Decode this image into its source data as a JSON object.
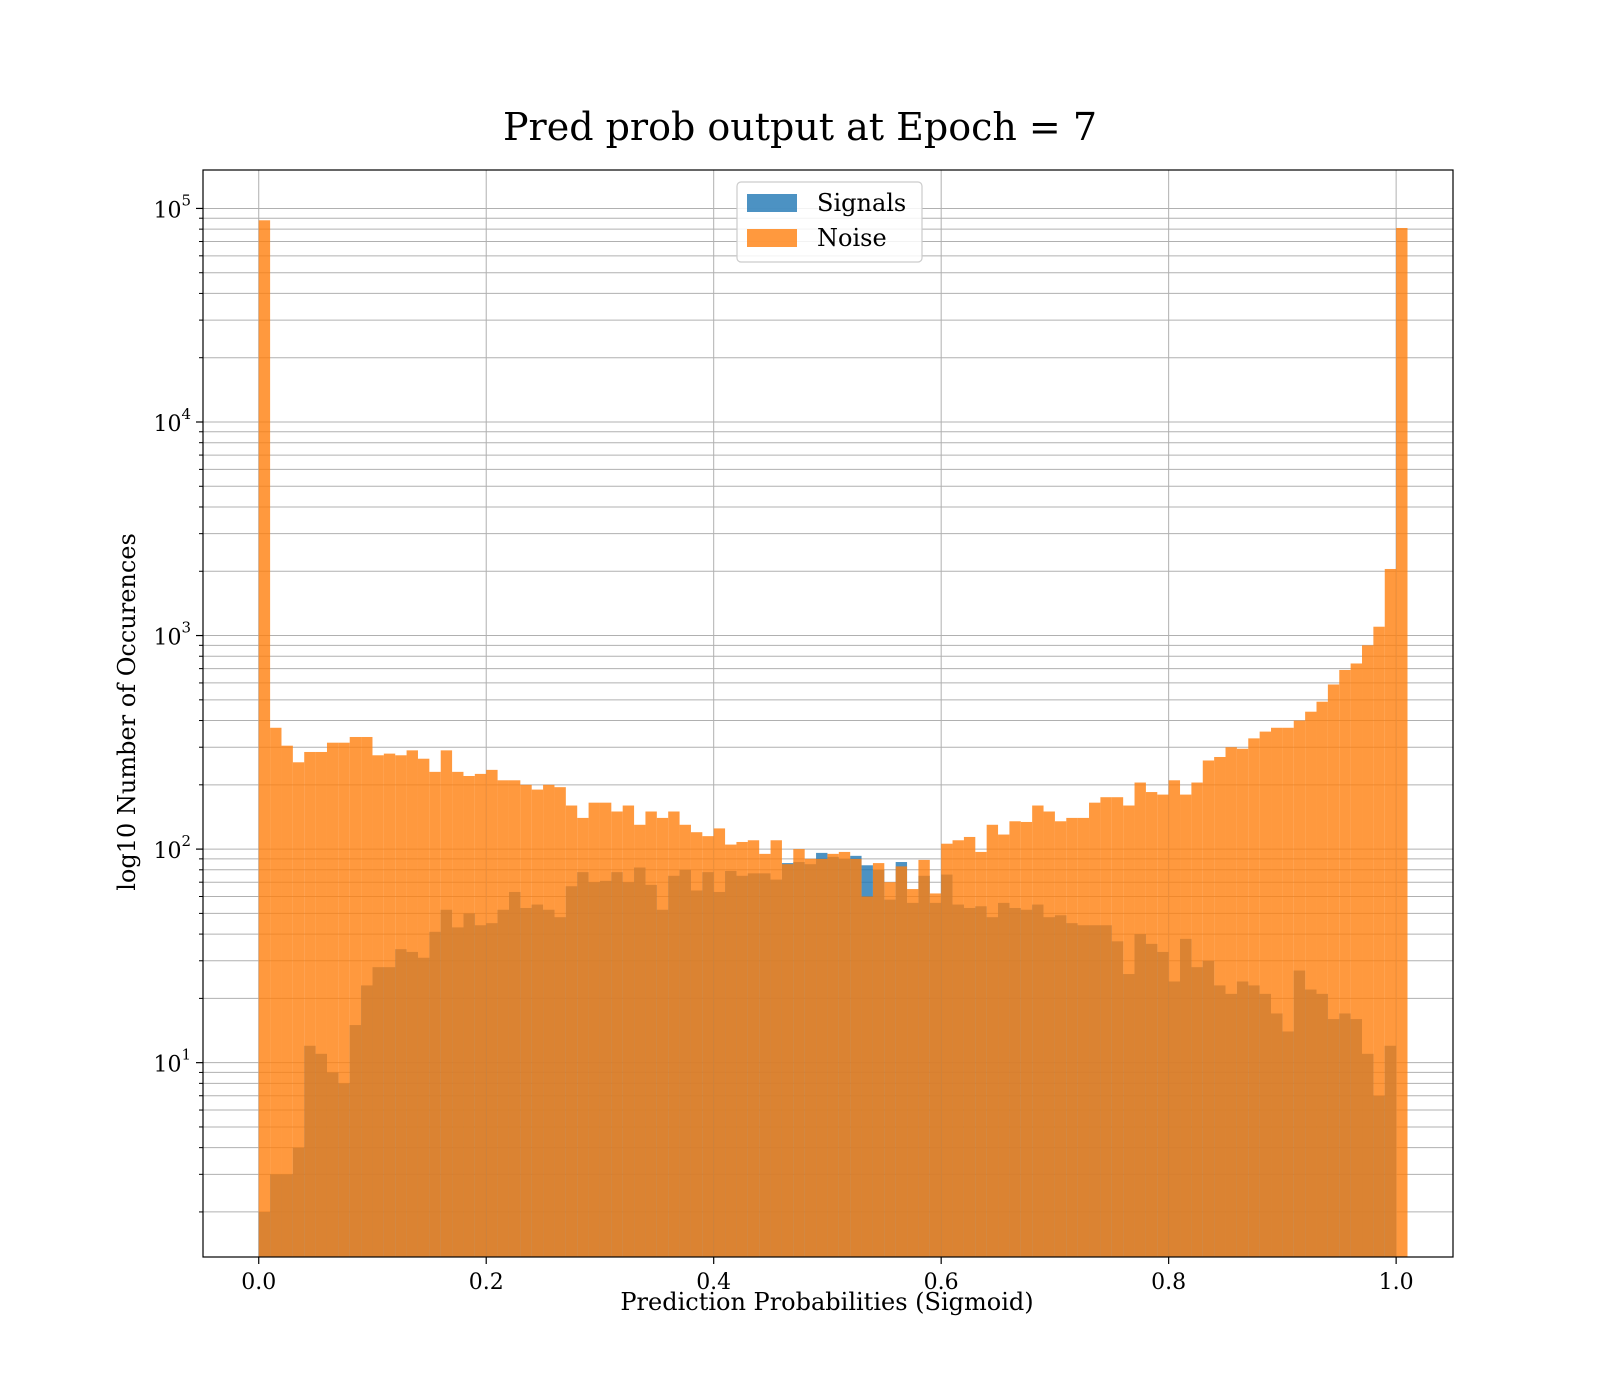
{
  "chart_data": {
    "type": "histogram",
    "title": "Pred prob output at Epoch = 7",
    "xlabel": "Prediction Probabilities (Sigmoid)",
    "ylabel": "log10 Number of Occurences",
    "xlim": [
      -0.049,
      1.05
    ],
    "ylim_log10": [
      0.09,
      5.18
    ],
    "yscale": "log",
    "grid": true,
    "legend_position": "upper-center",
    "bin_width": 0.01,
    "bin_start": 0.0,
    "x_ticks": [
      "0.0",
      "0.2",
      "0.4",
      "0.6",
      "0.8",
      "1.0"
    ],
    "x_tick_values": [
      0.0,
      0.2,
      0.4,
      0.6,
      0.8,
      1.0
    ],
    "y_ticks": [
      {
        "base": "10",
        "exp": "1",
        "value": 10
      },
      {
        "base": "10",
        "exp": "2",
        "value": 100
      },
      {
        "base": "10",
        "exp": "3",
        "value": 1000
      },
      {
        "base": "10",
        "exp": "4",
        "value": 10000
      },
      {
        "base": "10",
        "exp": "5",
        "value": 100000
      }
    ],
    "series": [
      {
        "name": "Signals",
        "color": "#1f77b4",
        "alpha": 0.8,
        "values": [
          2,
          3,
          3,
          4,
          12,
          11,
          9,
          8,
          15,
          23,
          28,
          28,
          34,
          33,
          31,
          41,
          52,
          43,
          50,
          44,
          45,
          52,
          63,
          53,
          55,
          52,
          48,
          67,
          78,
          70,
          71,
          78,
          70,
          82,
          68,
          52,
          75,
          80,
          64,
          78,
          63,
          79,
          75,
          77,
          77,
          72,
          86,
          87,
          85,
          96,
          92,
          90,
          93,
          84,
          80,
          58,
          87,
          56,
          75,
          56,
          76,
          55,
          53,
          54,
          48,
          56,
          53,
          52,
          55,
          48,
          49,
          45,
          44,
          44,
          44,
          37,
          26,
          40,
          36,
          33,
          24,
          38,
          28,
          30,
          23,
          21,
          24,
          23,
          21,
          17,
          14,
          27,
          22,
          21,
          16,
          17,
          16,
          11,
          7,
          12
        ]
      },
      {
        "name": "Noise",
        "color": "#ff7f0e",
        "alpha": 0.8,
        "values": [
          88000,
          370,
          305,
          255,
          285,
          285,
          315,
          315,
          335,
          335,
          275,
          280,
          275,
          290,
          265,
          230,
          290,
          230,
          220,
          225,
          235,
          210,
          210,
          200,
          190,
          200,
          195,
          160,
          140,
          165,
          165,
          150,
          160,
          130,
          150,
          140,
          150,
          130,
          120,
          115,
          125,
          105,
          108,
          110,
          95,
          110,
          85,
          100,
          90,
          90,
          95,
          97,
          90,
          60,
          86,
          70,
          83,
          65,
          89,
          62,
          106,
          110,
          114,
          97,
          130,
          117,
          135,
          134,
          160,
          150,
          135,
          140,
          140,
          165,
          175,
          175,
          160,
          205,
          185,
          180,
          210,
          180,
          205,
          260,
          270,
          300,
          295,
          330,
          355,
          370,
          370,
          400,
          440,
          490,
          590,
          690,
          740,
          900,
          1100,
          2050,
          81000
        ]
      }
    ]
  }
}
